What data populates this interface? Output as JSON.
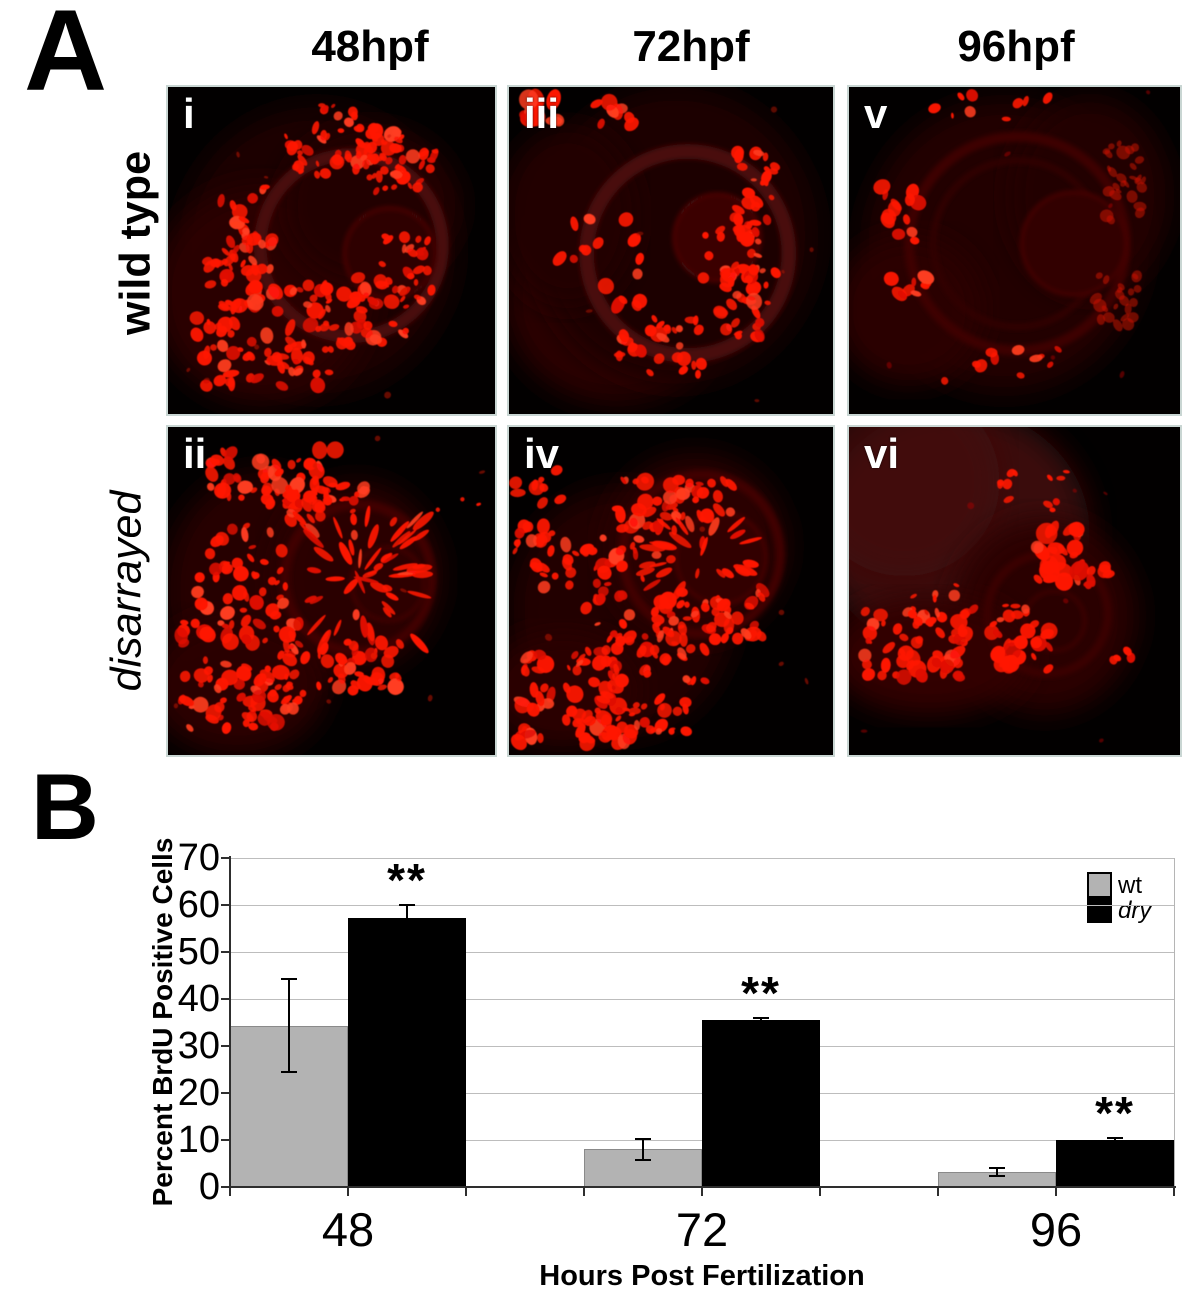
{
  "panel_a": {
    "label": "A",
    "column_headers": [
      "48hpf",
      "72hpf",
      "96hpf"
    ],
    "row_labels": [
      {
        "text": "wild type",
        "italic": false
      },
      {
        "text": "disarrayed",
        "italic": true
      }
    ],
    "micrographs": [
      {
        "numeral": "i",
        "genotype": "wild type",
        "timepoint": "48hpf"
      },
      {
        "numeral": "iii",
        "genotype": "wild type",
        "timepoint": "72hpf"
      },
      {
        "numeral": "v",
        "genotype": "wild type",
        "timepoint": "96hpf"
      },
      {
        "numeral": "ii",
        "genotype": "disarrayed",
        "timepoint": "48hpf"
      },
      {
        "numeral": "iv",
        "genotype": "disarrayed",
        "timepoint": "72hpf"
      },
      {
        "numeral": "vi",
        "genotype": "disarrayed",
        "timepoint": "96hpf"
      }
    ],
    "colors": {
      "signal_red": "#ff1505",
      "background": "#000000"
    }
  },
  "panel_b": {
    "label": "B"
  },
  "chart_data": {
    "type": "bar",
    "title": "",
    "xlabel": "Hours Post Fertilization",
    "ylabel": "Percent BrdU Positive Cells",
    "categories": [
      "48",
      "72",
      "96"
    ],
    "series": [
      {
        "name": "wt",
        "color": "#b3b3b3",
        "italic": false,
        "values": [
          34.3,
          8.0,
          3.2
        ],
        "errors": [
          9.9,
          2.2,
          0.9
        ]
      },
      {
        "name": "dry",
        "color": "#000000",
        "italic": true,
        "values": [
          57.3,
          35.5,
          10.1
        ],
        "errors": [
          2.7,
          0.5,
          0.4
        ]
      }
    ],
    "ylim": [
      0,
      70
    ],
    "yticks": [
      0,
      10,
      20,
      30,
      40,
      50,
      60,
      70
    ],
    "grid": true,
    "legend_position": "top-right",
    "significance": [
      {
        "marker": "**",
        "series": "dry",
        "category": "48"
      },
      {
        "marker": "**",
        "series": "dry",
        "category": "72"
      },
      {
        "marker": "**",
        "series": "dry",
        "category": "96"
      }
    ]
  }
}
